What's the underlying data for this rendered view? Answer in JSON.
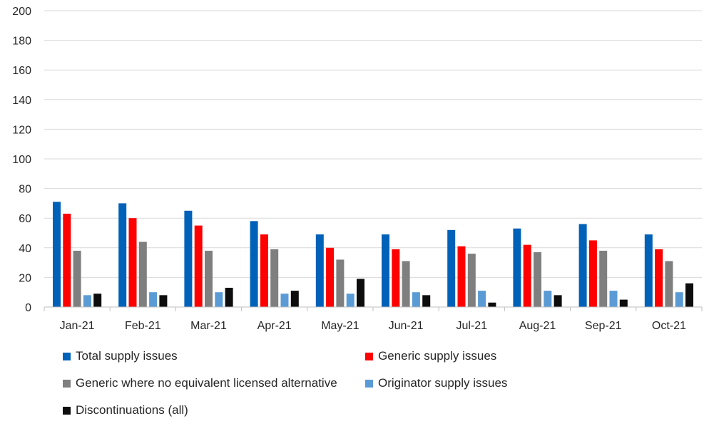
{
  "chart_data": {
    "type": "bar",
    "title": "",
    "xlabel": "",
    "ylabel": "",
    "ylim": [
      0,
      200
    ],
    "yticks": [
      0,
      20,
      40,
      60,
      80,
      100,
      120,
      140,
      160,
      180,
      200
    ],
    "grid": true,
    "legend_position": "bottom",
    "categories": [
      "Jan-21",
      "Feb-21",
      "Mar-21",
      "Apr-21",
      "May-21",
      "Jun-21",
      "Jul-21",
      "Aug-21",
      "Sep-21",
      "Oct-21"
    ],
    "series": [
      {
        "name": "Total supply issues",
        "color": "#0061B8",
        "values": [
          71,
          70,
          65,
          58,
          49,
          49,
          52,
          53,
          56,
          49
        ]
      },
      {
        "name": "Generic supply issues",
        "color": "#FF0000",
        "values": [
          63,
          60,
          55,
          49,
          40,
          39,
          41,
          42,
          45,
          39
        ]
      },
      {
        "name": "Generic where no equivalent licensed alternative",
        "color": "#7F7F7F",
        "values": [
          38,
          44,
          38,
          39,
          32,
          31,
          36,
          37,
          38,
          31
        ]
      },
      {
        "name": "Originator supply issues",
        "color": "#5B9BD5",
        "values": [
          8,
          10,
          10,
          9,
          9,
          10,
          11,
          11,
          11,
          10
        ]
      },
      {
        "name": "Discontinuations (all)",
        "color": "#0D0D0D",
        "values": [
          9,
          8,
          13,
          11,
          19,
          8,
          3,
          8,
          5,
          16
        ]
      }
    ]
  }
}
